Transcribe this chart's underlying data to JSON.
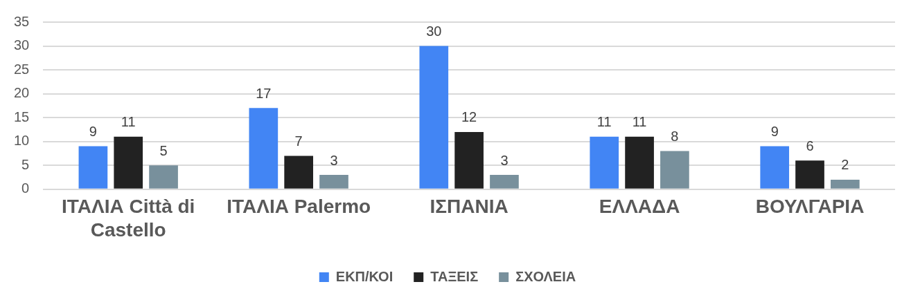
{
  "chart_data": {
    "type": "bar",
    "categories": [
      "ΙΤΑΛΙΑ Città di Castello",
      "ΙΤΑΛΙΑ Palermo",
      "ΙΣΠΑΝΙΑ",
      "ΕΛΛΑΔΑ",
      "ΒΟΥΛΓΑΡΙΑ"
    ],
    "series": [
      {
        "name": "ΕΚΠ/ΚΟΙ",
        "color": "#4285f4",
        "values": [
          9,
          17,
          30,
          11,
          9
        ]
      },
      {
        "name": "ΤΑΞΕΙΣ",
        "color": "#222222",
        "values": [
          11,
          7,
          12,
          11,
          6
        ]
      },
      {
        "name": "ΣΧΟΛΕΙΑ",
        "color": "#78909c",
        "values": [
          5,
          3,
          3,
          8,
          2
        ]
      }
    ],
    "ylim": [
      0,
      35
    ],
    "yticks": [
      0,
      5,
      10,
      15,
      20,
      25,
      30,
      35
    ],
    "grid": "y",
    "legend": "bottom",
    "data_labels": true
  }
}
